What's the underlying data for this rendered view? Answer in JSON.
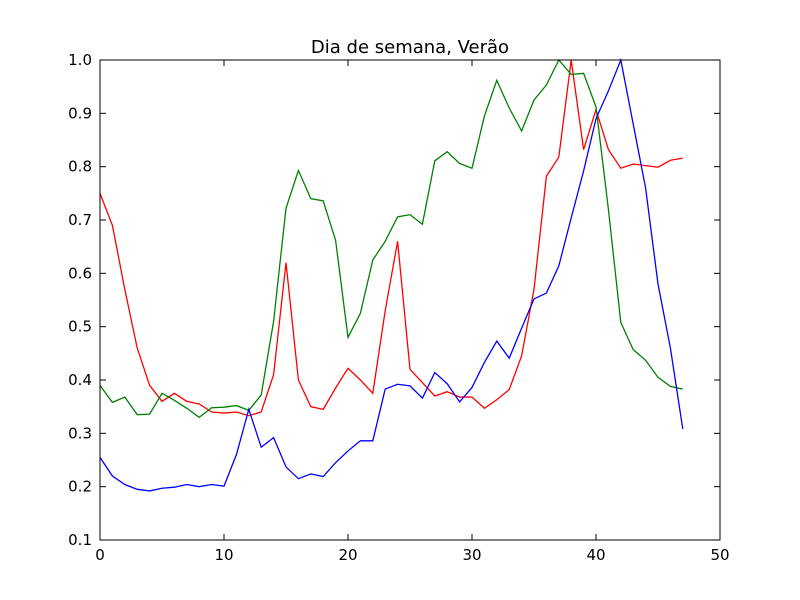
{
  "chart_data": {
    "type": "line",
    "title": "Dia de semana, Verão",
    "xlabel": "",
    "ylabel": "",
    "xlim": [
      0,
      50
    ],
    "ylim": [
      0.1,
      1.0
    ],
    "xticks": [
      0,
      10,
      20,
      30,
      40,
      50
    ],
    "yticks": [
      0.1,
      0.2,
      0.3,
      0.4,
      0.5,
      0.6,
      0.7,
      0.8,
      0.9,
      1.0
    ],
    "xtick_labels": [
      "0",
      "10",
      "20",
      "30",
      "40",
      "50"
    ],
    "ytick_labels": [
      "0.1",
      "0.2",
      "0.3",
      "0.4",
      "0.5",
      "0.6",
      "0.7",
      "0.8",
      "0.9",
      "1.0"
    ],
    "grid": false,
    "x": [
      0,
      1,
      2,
      3,
      4,
      5,
      6,
      7,
      8,
      9,
      10,
      11,
      12,
      13,
      14,
      15,
      16,
      17,
      18,
      19,
      20,
      21,
      22,
      23,
      24,
      25,
      26,
      27,
      28,
      29,
      30,
      31,
      32,
      33,
      34,
      35,
      36,
      37,
      38,
      39,
      40,
      41,
      42,
      43,
      44,
      45,
      46,
      47
    ],
    "series": [
      {
        "color": "#ff0000",
        "values": [
          0.75,
          0.69,
          0.57,
          0.46,
          0.39,
          0.36,
          0.375,
          0.36,
          0.355,
          0.34,
          0.338,
          0.34,
          0.333,
          0.34,
          0.41,
          0.62,
          0.4,
          0.35,
          0.345,
          0.385,
          0.422,
          0.4,
          0.375,
          0.53,
          0.66,
          0.42,
          0.395,
          0.37,
          0.378,
          0.368,
          0.368,
          0.347,
          0.363,
          0.382,
          0.445,
          0.57,
          0.782,
          0.818,
          1.0,
          0.832,
          0.907,
          0.832,
          0.797,
          0.805,
          0.802,
          0.799,
          0.812,
          0.816
        ]
      },
      {
        "color": "#008000",
        "values": [
          0.39,
          0.358,
          0.368,
          0.335,
          0.336,
          0.375,
          0.362,
          0.347,
          0.33,
          0.348,
          0.349,
          0.352,
          0.343,
          0.372,
          0.51,
          0.722,
          0.793,
          0.74,
          0.736,
          0.662,
          0.48,
          0.525,
          0.625,
          0.66,
          0.706,
          0.71,
          0.692,
          0.811,
          0.828,
          0.806,
          0.797,
          0.895,
          0.962,
          0.91,
          0.867,
          0.925,
          0.953,
          1.0,
          0.973,
          0.975,
          0.912,
          0.72,
          0.508,
          0.457,
          0.437,
          0.405,
          0.388,
          0.383
        ]
      },
      {
        "color": "#0000ff",
        "values": [
          0.255,
          0.22,
          0.204,
          0.195,
          0.192,
          0.197,
          0.199,
          0.204,
          0.2,
          0.204,
          0.201,
          0.26,
          0.345,
          0.274,
          0.292,
          0.237,
          0.215,
          0.224,
          0.219,
          0.245,
          0.267,
          0.286,
          0.286,
          0.383,
          0.392,
          0.389,
          0.366,
          0.414,
          0.393,
          0.359,
          0.386,
          0.433,
          0.473,
          0.441,
          0.497,
          0.552,
          0.563,
          0.614,
          0.704,
          0.792,
          0.89,
          0.942,
          1.0,
          0.88,
          0.76,
          0.58,
          0.46,
          0.308
        ]
      }
    ]
  }
}
